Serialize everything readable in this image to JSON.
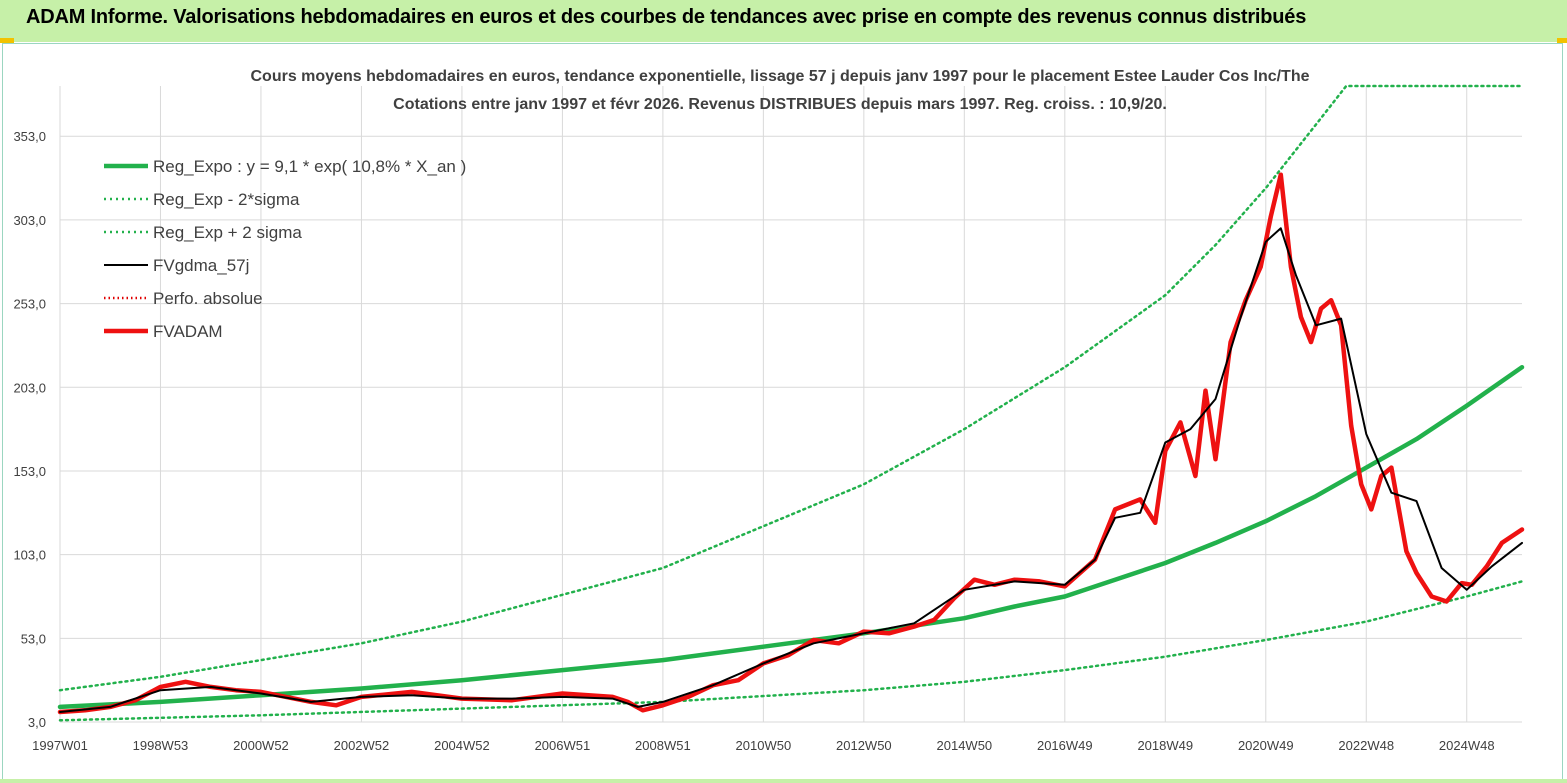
{
  "banner": {
    "title": "ADAM Informe. Valorisations hebdomadaires en euros et des courbes de tendances avec prise en compte des revenus connus distribués"
  },
  "colors": {
    "banner_bg": "#c6f0a8",
    "reg_expo": "#22b14c",
    "sigma": "#22b14c",
    "fvgdma": "#000000",
    "perfo": "#e00000",
    "fvadam": "#ee1111",
    "grid": "#d9d9d9"
  },
  "chart_data": {
    "type": "line",
    "title": "Cours moyens hebdomadaires en euros, tendance exponentielle, lissage 57 j depuis janv 1997 pour le placement Estee Lauder Cos Inc/The",
    "subtitle": "Cotations entre janv 1997 et févr 2026. Revenus DISTRIBUES depuis mars 1997. Reg. croiss. : 10,9/20.",
    "xlabel": "",
    "ylabel": "",
    "x_range": [
      1997.0,
      2026.1
    ],
    "ylim": [
      3.0,
      383.0
    ],
    "y_ticks": [
      3.0,
      53.0,
      103.0,
      153.0,
      203.0,
      253.0,
      303.0,
      353.0
    ],
    "y_tick_labels": [
      "3,0",
      "53,0",
      "103,0",
      "153,0",
      "203,0",
      "253,0",
      "303,0",
      "353,0"
    ],
    "x_ticks": [
      1997.0,
      1999.0,
      2001.0,
      2003.0,
      2005.0,
      2007.0,
      2009.0,
      2011.0,
      2013.0,
      2015.0,
      2017.0,
      2019.0,
      2021.0,
      2023.0,
      2025.0
    ],
    "x_tick_labels": [
      "1997W01",
      "1998W53",
      "2000W52",
      "2002W52",
      "2004W52",
      "2006W51",
      "2008W51",
      "2010W50",
      "2012W50",
      "2014W50",
      "2016W49",
      "2018W49",
      "2020W49",
      "2022W48",
      "2024W48"
    ],
    "grid": true,
    "legend_placement": "top-left",
    "legend": [
      {
        "label": "Reg_Expo : y = 9,1 * exp( 10,8% *  X_an )",
        "style": "solid-thick",
        "color": "#22b14c"
      },
      {
        "label": "Reg_Exp - 2*sigma",
        "style": "dotted",
        "color": "#22b14c"
      },
      {
        "label": "Reg_Exp + 2 sigma",
        "style": "dotted",
        "color": "#22b14c"
      },
      {
        "label": "FVgdma_57j",
        "style": "solid",
        "color": "#000000"
      },
      {
        "label": "Perfo. absolue",
        "style": "dotted",
        "color": "#e00000"
      },
      {
        "label": "FVADAM",
        "style": "solid-thick",
        "color": "#ee1111"
      }
    ],
    "series": [
      {
        "name": "Reg_Expo : y = 9,1 * exp( 10,8% *  X_an )",
        "x": [
          1997.0,
          1999.0,
          2001.0,
          2003.0,
          2005.0,
          2007.0,
          2009.0,
          2011.0,
          2013.0,
          2015.0,
          2016.0,
          2017.0,
          2018.0,
          2019.0,
          2020.0,
          2021.0,
          2022.0,
          2023.0,
          2024.0,
          2025.0,
          2026.1
        ],
        "y": [
          12,
          15,
          19,
          23,
          28,
          34,
          40,
          48,
          56,
          65,
          72,
          78,
          88,
          98,
          110,
          123,
          138,
          155,
          172,
          192,
          215
        ]
      },
      {
        "name": "Reg_Exp - 2*sigma",
        "x": [
          1997.0,
          2001.0,
          2005.0,
          2009.0,
          2013.0,
          2015.0,
          2017.0,
          2019.0,
          2021.0,
          2023.0,
          2025.0,
          2026.1
        ],
        "y": [
          4,
          7,
          11,
          15,
          22,
          27,
          34,
          42,
          52,
          63,
          78,
          87
        ]
      },
      {
        "name": "Reg_Exp + 2 sigma",
        "x": [
          1997.0,
          1999.0,
          2001.0,
          2003.0,
          2005.0,
          2007.0,
          2009.0,
          2011.0,
          2013.0,
          2015.0,
          2017.0,
          2019.0,
          2020.0,
          2021.0,
          2022.0,
          2022.6,
          2023.0,
          2024.0,
          2025.0,
          2026.1
        ],
        "y": [
          22,
          30,
          40,
          50,
          63,
          79,
          95,
          120,
          145,
          178,
          215,
          258,
          288,
          322,
          360,
          383,
          383,
          383,
          383,
          383
        ]
      },
      {
        "name": "FVgdma_57j",
        "x": [
          1997.0,
          1998.0,
          1999.0,
          2000.0,
          2001.0,
          2002.0,
          2003.0,
          2004.0,
          2005.0,
          2006.0,
          2007.0,
          2008.0,
          2008.5,
          2009.0,
          2010.0,
          2011.0,
          2012.0,
          2013.0,
          2014.0,
          2015.0,
          2016.0,
          2017.0,
          2017.6,
          2018.0,
          2018.5,
          2019.0,
          2019.5,
          2020.0,
          2020.5,
          2021.0,
          2021.3,
          2021.6,
          2022.0,
          2022.5,
          2023.0,
          2023.5,
          2024.0,
          2024.5,
          2025.0,
          2025.5,
          2026.1
        ],
        "y": [
          9,
          12,
          22,
          24,
          20,
          15,
          18,
          19,
          17,
          17,
          18,
          17,
          12,
          15,
          25,
          38,
          50,
          56,
          62,
          82,
          87,
          85,
          100,
          125,
          128,
          170,
          178,
          196,
          245,
          290,
          298,
          270,
          240,
          244,
          175,
          140,
          135,
          95,
          82,
          96,
          110
        ]
      },
      {
        "name": "FVADAM",
        "x": [
          1997.0,
          1997.5,
          1998.0,
          1998.5,
          1999.0,
          1999.5,
          2000.0,
          2000.5,
          2001.0,
          2001.5,
          2002.0,
          2002.5,
          2003.0,
          2004.0,
          2005.0,
          2006.0,
          2007.0,
          2008.0,
          2008.3,
          2008.6,
          2009.0,
          2009.5,
          2010.0,
          2010.5,
          2011.0,
          2011.5,
          2012.0,
          2012.5,
          2013.0,
          2013.5,
          2014.0,
          2014.4,
          2014.8,
          2015.2,
          2015.6,
          2016.0,
          2016.5,
          2017.0,
          2017.6,
          2018.0,
          2018.5,
          2018.8,
          2019.0,
          2019.3,
          2019.6,
          2019.8,
          2020.0,
          2020.3,
          2020.6,
          2020.9,
          2021.1,
          2021.3,
          2021.5,
          2021.7,
          2021.9,
          2022.1,
          2022.3,
          2022.5,
          2022.7,
          2022.9,
          2023.1,
          2023.3,
          2023.5,
          2023.8,
          2024.0,
          2024.3,
          2024.6,
          2024.9,
          2025.1,
          2025.4,
          2025.7,
          2026.1
        ],
        "y": [
          9,
          10,
          12,
          16,
          24,
          27,
          24,
          22,
          21,
          18,
          15,
          13,
          18,
          21,
          17,
          16,
          20,
          18,
          15,
          10,
          13,
          18,
          25,
          28,
          38,
          43,
          52,
          50,
          57,
          56,
          60,
          64,
          77,
          88,
          85,
          88,
          87,
          84,
          100,
          130,
          136,
          122,
          165,
          182,
          150,
          201,
          160,
          230,
          255,
          275,
          305,
          330,
          275,
          245,
          230,
          250,
          255,
          240,
          180,
          145,
          130,
          150,
          155,
          105,
          92,
          78,
          75,
          86,
          85,
          96,
          110,
          118
        ]
      }
    ]
  }
}
